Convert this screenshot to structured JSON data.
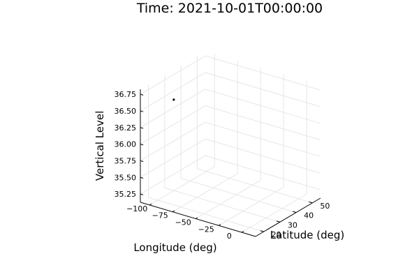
{
  "chart_data": {
    "type": "scatter",
    "projection": "3d",
    "title": "Time: 2021-10-01T00:00:00",
    "xlabel": "Longitude (deg)",
    "ylabel": "Latitude (deg)",
    "zlabel": "Vertical Level",
    "xlim": [
      -110,
      15
    ],
    "ylim": [
      15,
      55
    ],
    "zlim": [
      35.125,
      36.825
    ],
    "xticks": [
      -100,
      -75,
      -50,
      -25,
      0
    ],
    "xtick_labels": [
      "−100",
      "−75",
      "−50",
      "−25",
      "0"
    ],
    "yticks": [
      20,
      30,
      40,
      50
    ],
    "ytick_labels": [
      "20",
      "30",
      "40",
      "50"
    ],
    "zticks": [
      35.25,
      35.5,
      35.75,
      36.0,
      36.25,
      36.5,
      36.75
    ],
    "ztick_labels": [
      "35.25",
      "35.50",
      "35.75",
      "36.00",
      "36.25",
      "36.50",
      "36.75"
    ],
    "grid": true,
    "legend": "none",
    "series": [
      {
        "color": "#000000",
        "points": [
          {
            "x": -101,
            "y": 21,
            "z": 36.63
          }
        ]
      }
    ]
  }
}
